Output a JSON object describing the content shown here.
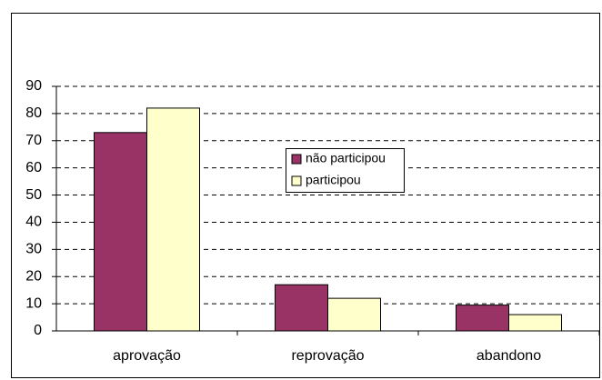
{
  "chart_data": {
    "type": "bar",
    "categories": [
      "aprovação",
      "reprovação",
      "abandono"
    ],
    "series": [
      {
        "name": "não participou",
        "color": "#993366",
        "values": [
          73,
          17,
          9.5
        ]
      },
      {
        "name": "participou",
        "color": "#ffffcc",
        "values": [
          82,
          12,
          6
        ]
      }
    ],
    "ylim": [
      0,
      90
    ],
    "yticks": [
      0,
      10,
      20,
      30,
      40,
      50,
      60,
      70,
      80,
      90
    ],
    "grid": true
  }
}
